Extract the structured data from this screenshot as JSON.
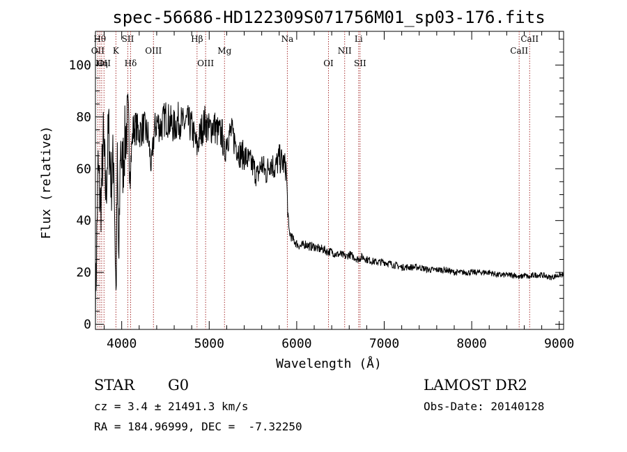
{
  "chart_data": {
    "type": "line",
    "title": "spec-56686-HD122309S071756M01_sp03-176.fits",
    "xlabel": "Wavelength (Å)",
    "ylabel": "Flux (relative)",
    "xlim": [
      3700,
      9050
    ],
    "ylim": [
      -2,
      113
    ],
    "x_ticks": [
      4000,
      5000,
      6000,
      7000,
      8000,
      9000
    ],
    "y_ticks": [
      0,
      20,
      40,
      60,
      80,
      100
    ],
    "grid": false,
    "series": [
      {
        "x": [
          3700,
          3730,
          3760,
          3790,
          3820,
          3850,
          3880,
          3910,
          3935,
          3950,
          3968,
          3985,
          4010,
          4040,
          4070,
          4101,
          4130,
          4160,
          4200,
          4250,
          4300,
          4340,
          4370,
          4400,
          4450,
          4500,
          4550,
          4600,
          4650,
          4700,
          4750,
          4800,
          4861,
          4900,
          4950,
          5000,
          5050,
          5100,
          5150,
          5175,
          5200,
          5250,
          5300,
          5350,
          5400,
          5450,
          5500,
          5550,
          5600,
          5650,
          5700,
          5750,
          5800,
          5850,
          5880,
          5893,
          5910,
          5950,
          6000,
          6050,
          6100,
          6150,
          6200,
          6250,
          6300,
          6350,
          6400,
          6450,
          6500,
          6563,
          6600,
          6650,
          6700,
          6750,
          6800,
          6900,
          7000,
          7100,
          7200,
          7300,
          7400,
          7500,
          7600,
          7700,
          7800,
          7900,
          8000,
          8100,
          8200,
          8300,
          8400,
          8500,
          8542,
          8600,
          8662,
          8700,
          8800,
          8900,
          9000,
          9050
        ],
        "values": [
          5,
          60,
          45,
          70,
          50,
          75,
          55,
          65,
          10,
          60,
          20,
          70,
          60,
          72,
          78,
          62,
          75,
          76,
          74,
          76,
          73,
          60,
          74,
          78,
          76,
          80,
          78,
          76,
          79,
          77,
          78,
          76,
          68,
          74,
          78,
          75,
          77,
          74,
          73,
          65,
          72,
          74,
          70,
          66,
          65,
          63,
          61,
          57,
          62,
          58,
          63,
          60,
          64,
          62,
          60,
          48,
          36,
          33,
          31,
          30,
          31,
          30,
          30,
          29,
          29,
          28,
          28,
          27,
          27,
          26,
          27,
          26,
          25,
          26,
          25,
          24,
          24,
          23,
          22,
          22,
          22,
          21,
          21,
          21,
          20,
          20,
          20,
          20,
          20,
          19,
          19,
          19,
          18,
          19,
          18,
          19,
          19,
          18,
          19,
          19
        ]
      }
    ],
    "lines": [
      {
        "wave": 3727,
        "label": "OII",
        "row": 2
      },
      {
        "wave": 3750,
        "label": "Hθ",
        "row": 1
      },
      {
        "wave": 3771,
        "label": "Hη",
        "row": 3
      },
      {
        "wave": 3798,
        "label": "OII",
        "row": 3
      },
      {
        "wave": 3934,
        "label": "K",
        "row": 2
      },
      {
        "wave": 4070,
        "label": "SII",
        "row": 1
      },
      {
        "wave": 4102,
        "label": "Hδ",
        "row": 3
      },
      {
        "wave": 4363,
        "label": "OIII",
        "row": 2
      },
      {
        "wave": 4861,
        "label": "Hβ",
        "row": 1
      },
      {
        "wave": 4959,
        "label": "OIII",
        "row": 3
      },
      {
        "wave": 5175,
        "label": "Mg",
        "row": 2
      },
      {
        "wave": 5893,
        "label": "Na",
        "row": 1
      },
      {
        "wave": 6363,
        "label": "OI",
        "row": 3
      },
      {
        "wave": 6548,
        "label": "NII",
        "row": 2
      },
      {
        "wave": 6708,
        "label": "Li",
        "row": 1
      },
      {
        "wave": 6724,
        "label": "SII",
        "row": 3
      },
      {
        "wave": 8542,
        "label": "CaII",
        "row": 2
      },
      {
        "wave": 8662,
        "label": "CaII",
        "row": 1
      }
    ]
  },
  "info": {
    "class": "STAR",
    "subclass": "G0",
    "survey": "LAMOST DR2",
    "cz": "cz = 3.4 ± 21491.3 km/s",
    "obs_date": "Obs-Date: 20140128",
    "radec": "RA = 184.96999, DEC =  -7.32250"
  }
}
